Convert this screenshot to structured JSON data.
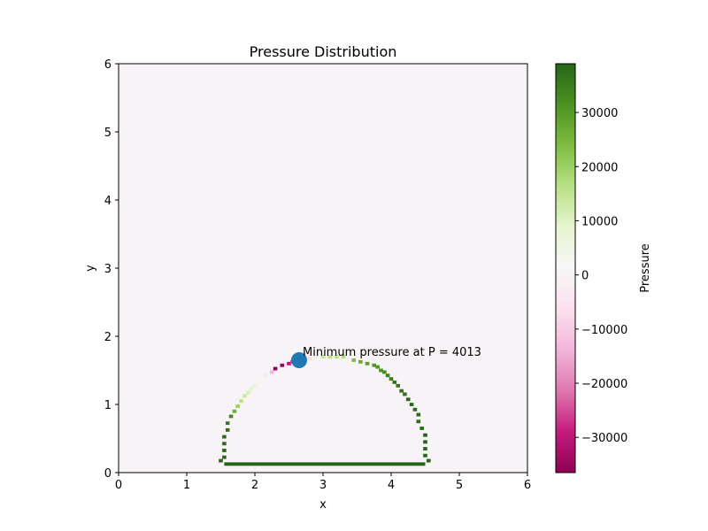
{
  "chart_data": {
    "type": "heatmap",
    "title": "Pressure Distribution",
    "xlabel": "x",
    "ylabel": "y",
    "xlim": [
      0,
      6
    ],
    "ylim": [
      0,
      6
    ],
    "xticks": [
      "0",
      "1",
      "2",
      "3",
      "4",
      "5",
      "6"
    ],
    "yticks": [
      "0",
      "1",
      "2",
      "3",
      "4",
      "5",
      "6"
    ],
    "background_value": 0,
    "colorbar": {
      "label": "Pressure",
      "colormap": "PiYG",
      "range": [
        -36500,
        39000
      ],
      "ticks": [
        "−30000",
        "−20000",
        "−10000",
        "0",
        "10000",
        "20000",
        "30000"
      ],
      "tick_values": [
        -30000,
        -20000,
        -10000,
        0,
        10000,
        20000,
        30000
      ],
      "stops": [
        "#8e0152",
        "#c51b7d",
        "#de77ae",
        "#f1b6da",
        "#fde0ef",
        "#f7f7f7",
        "#e6f5d0",
        "#b8e186",
        "#7fbc41",
        "#4d9221",
        "#276419"
      ]
    },
    "cells": [
      {
        "x": 1.5,
        "y": 0.175,
        "value": 39000
      },
      {
        "x": 1.55,
        "y": 0.225,
        "value": 38000
      },
      {
        "x": 1.55,
        "y": 0.325,
        "value": 38000
      },
      {
        "x": 1.55,
        "y": 0.425,
        "value": 38000
      },
      {
        "x": 1.55,
        "y": 0.525,
        "value": 38000
      },
      {
        "x": 1.6,
        "y": 0.625,
        "value": 37000
      },
      {
        "x": 1.6,
        "y": 0.725,
        "value": 35000
      },
      {
        "x": 1.65,
        "y": 0.825,
        "value": 33000
      },
      {
        "x": 1.7,
        "y": 0.9,
        "value": 26000
      },
      {
        "x": 1.75,
        "y": 0.975,
        "value": 20000
      },
      {
        "x": 1.8,
        "y": 1.05,
        "value": 16000
      },
      {
        "x": 1.85,
        "y": 1.125,
        "value": 14000
      },
      {
        "x": 1.9,
        "y": 1.175,
        "value": 11000
      },
      {
        "x": 1.95,
        "y": 1.225,
        "value": 9000
      },
      {
        "x": 2.0,
        "y": 1.275,
        "value": 7000
      },
      {
        "x": 2.05,
        "y": 1.325,
        "value": 4000
      },
      {
        "x": 2.1,
        "y": 1.375,
        "value": 1500
      },
      {
        "x": 2.15,
        "y": 1.425,
        "value": -4000
      },
      {
        "x": 2.25,
        "y": 1.475,
        "value": -14000
      },
      {
        "x": 2.3,
        "y": 1.525,
        "value": -36500
      },
      {
        "x": 2.4,
        "y": 1.575,
        "value": -35000
      },
      {
        "x": 2.5,
        "y": 1.6,
        "value": -30000
      },
      {
        "x": 2.55,
        "y": 1.625,
        "value": -26000
      },
      {
        "x": 2.6,
        "y": 1.65,
        "value": -22000
      },
      {
        "x": 2.7,
        "y": 1.675,
        "value": -16000
      },
      {
        "x": 2.8,
        "y": 1.675,
        "value": -8000
      },
      {
        "x": 2.9,
        "y": 1.7,
        "value": 6000
      },
      {
        "x": 3.0,
        "y": 1.7,
        "value": 14000
      },
      {
        "x": 3.1,
        "y": 1.7,
        "value": 16000
      },
      {
        "x": 3.2,
        "y": 1.7,
        "value": 16000
      },
      {
        "x": 3.3,
        "y": 1.7,
        "value": 17000
      },
      {
        "x": 3.45,
        "y": 1.65,
        "value": 24000
      },
      {
        "x": 3.55,
        "y": 1.625,
        "value": 27000
      },
      {
        "x": 3.65,
        "y": 1.6,
        "value": 29000
      },
      {
        "x": 3.75,
        "y": 1.575,
        "value": 30000
      },
      {
        "x": 3.8,
        "y": 1.55,
        "value": 31000
      },
      {
        "x": 3.85,
        "y": 1.5,
        "value": 32000
      },
      {
        "x": 3.9,
        "y": 1.475,
        "value": 33000
      },
      {
        "x": 3.95,
        "y": 1.425,
        "value": 34000
      },
      {
        "x": 4.0,
        "y": 1.375,
        "value": 35000
      },
      {
        "x": 4.05,
        "y": 1.325,
        "value": 36000
      },
      {
        "x": 4.1,
        "y": 1.275,
        "value": 36000
      },
      {
        "x": 4.15,
        "y": 1.2,
        "value": 37000
      },
      {
        "x": 4.2,
        "y": 1.15,
        "value": 37000
      },
      {
        "x": 4.25,
        "y": 1.075,
        "value": 38000
      },
      {
        "x": 4.3,
        "y": 1.0,
        "value": 38000
      },
      {
        "x": 4.35,
        "y": 0.925,
        "value": 38000
      },
      {
        "x": 4.4,
        "y": 0.85,
        "value": 38000
      },
      {
        "x": 4.4,
        "y": 0.75,
        "value": 38000
      },
      {
        "x": 4.45,
        "y": 0.65,
        "value": 38000
      },
      {
        "x": 4.5,
        "y": 0.55,
        "value": 39000
      },
      {
        "x": 4.5,
        "y": 0.45,
        "value": 39000
      },
      {
        "x": 4.5,
        "y": 0.35,
        "value": 39000
      },
      {
        "x": 4.5,
        "y": 0.25,
        "value": 39000
      },
      {
        "x": 4.55,
        "y": 0.175,
        "value": 39000
      }
    ],
    "bottom_segment": {
      "x_start": 1.55,
      "x_end": 4.5,
      "y": 0.125,
      "value": 39000
    },
    "marker": {
      "x": 2.65,
      "y": 1.65,
      "color": "#1f77b4"
    },
    "annotation": "Minimum pressure at P = 4013"
  }
}
